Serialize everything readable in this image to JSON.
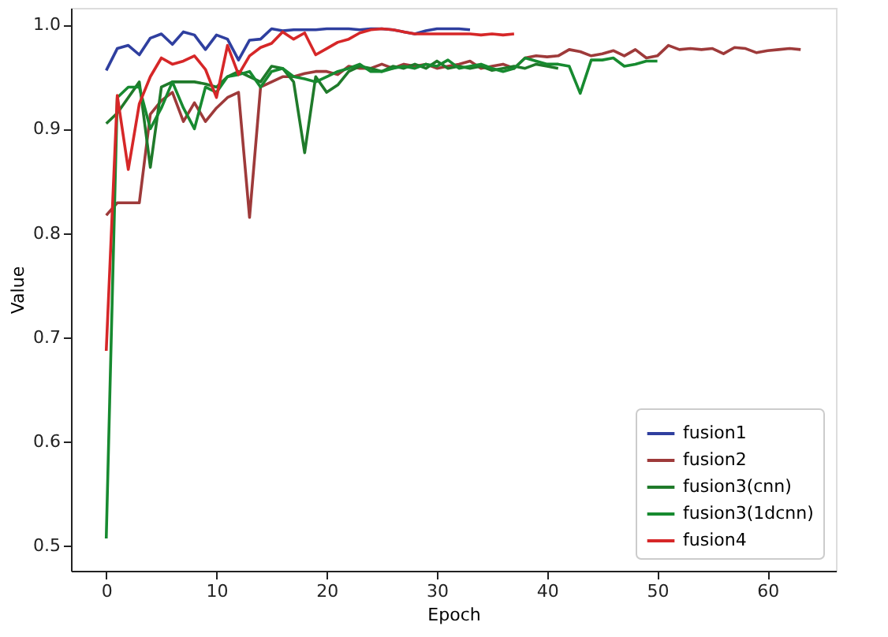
{
  "chart_data": {
    "type": "line",
    "xlabel": "Epoch",
    "ylabel": "Value",
    "xlim": [
      -3.2,
      66.2
    ],
    "ylim": [
      0.476,
      1.016
    ],
    "xticks": [
      0,
      10,
      20,
      30,
      40,
      50,
      60
    ],
    "yticks": [
      0.5,
      0.6,
      0.7,
      0.8,
      0.9,
      {
        "value": 1,
        "label": "1.0"
      }
    ],
    "grid": false,
    "legend": "bottom right",
    "marker": "none",
    "line_style": "solid",
    "series": [
      {
        "name": "fusion1",
        "color": "#2f3f9f",
        "x": [
          0,
          1,
          2,
          3,
          4,
          5,
          6,
          7,
          8,
          9,
          10,
          11,
          12,
          13,
          14,
          15,
          16,
          17,
          18,
          19,
          20,
          21,
          22,
          23,
          24,
          25,
          26,
          27,
          28,
          29,
          30,
          31,
          32,
          33
        ],
        "values": [
          0.956,
          0.977,
          0.98,
          0.971,
          0.987,
          0.991,
          0.981,
          0.993,
          0.99,
          0.976,
          0.99,
          0.986,
          0.966,
          0.985,
          0.986,
          0.996,
          0.994,
          0.995,
          0.995,
          0.995,
          0.996,
          0.996,
          0.996,
          0.995,
          0.996,
          0.996,
          0.995,
          0.993,
          0.991,
          0.994,
          0.996,
          0.996,
          0.996,
          0.995
        ]
      },
      {
        "name": "fusion2",
        "color": "#9e3a3a",
        "x": [
          0,
          1,
          2,
          3,
          4,
          5,
          6,
          7,
          8,
          9,
          10,
          11,
          12,
          13,
          14,
          15,
          16,
          17,
          18,
          19,
          20,
          21,
          22,
          23,
          24,
          25,
          26,
          27,
          28,
          29,
          30,
          31,
          32,
          33,
          34,
          35,
          36,
          37,
          38,
          39,
          40,
          41,
          42,
          43,
          44,
          45,
          46,
          47,
          48,
          49,
          50,
          51,
          52,
          53,
          54,
          55,
          56,
          57,
          58,
          59,
          60,
          61,
          62,
          63
        ],
        "values": [
          0.817,
          0.829,
          0.829,
          0.829,
          0.914,
          0.927,
          0.935,
          0.907,
          0.925,
          0.907,
          0.92,
          0.93,
          0.935,
          0.815,
          0.94,
          0.945,
          0.95,
          0.95,
          0.953,
          0.955,
          0.955,
          0.952,
          0.96,
          0.958,
          0.958,
          0.962,
          0.958,
          0.962,
          0.96,
          0.962,
          0.958,
          0.96,
          0.962,
          0.965,
          0.958,
          0.96,
          0.962,
          0.958,
          0.968,
          0.97,
          0.969,
          0.97,
          0.976,
          0.974,
          0.97,
          0.972,
          0.975,
          0.97,
          0.976,
          0.968,
          0.97,
          0.98,
          0.976,
          0.977,
          0.976,
          0.977,
          0.972,
          0.978,
          0.977,
          0.973,
          0.975,
          0.976,
          0.977,
          0.976
        ]
      },
      {
        "name": "fusion3(cnn)",
        "color": "#1f7a2a",
        "x": [
          0,
          1,
          2,
          3,
          4,
          5,
          6,
          7,
          8,
          9,
          10,
          11,
          12,
          13,
          14,
          15,
          16,
          17,
          18,
          19,
          20,
          21,
          22,
          23,
          24,
          25,
          26,
          27,
          28,
          29,
          30,
          31,
          32,
          33,
          34,
          35,
          36,
          37,
          38,
          39,
          40,
          41
        ],
        "values": [
          0.905,
          0.915,
          0.93,
          0.945,
          0.863,
          0.94,
          0.945,
          0.945,
          0.945,
          0.943,
          0.94,
          0.95,
          0.955,
          0.95,
          0.945,
          0.96,
          0.958,
          0.945,
          0.877,
          0.95,
          0.935,
          0.942,
          0.955,
          0.96,
          0.958,
          0.955,
          0.96,
          0.958,
          0.962,
          0.958,
          0.965,
          0.958,
          0.96,
          0.958,
          0.96,
          0.956,
          0.958,
          0.96,
          0.958,
          0.962,
          0.96,
          0.958
        ]
      },
      {
        "name": "fusion3(1dcnn)",
        "color": "#178a30",
        "x": [
          0,
          1,
          2,
          3,
          4,
          5,
          6,
          7,
          8,
          9,
          10,
          11,
          12,
          13,
          14,
          15,
          16,
          17,
          18,
          19,
          20,
          21,
          22,
          23,
          24,
          25,
          26,
          27,
          28,
          29,
          30,
          31,
          32,
          33,
          34,
          35,
          36,
          37,
          38,
          39,
          40,
          41,
          42,
          43,
          44,
          45,
          46,
          47,
          48,
          49,
          50
        ],
        "values": [
          0.507,
          0.93,
          0.94,
          0.94,
          0.9,
          0.92,
          0.945,
          0.92,
          0.9,
          0.94,
          0.935,
          0.95,
          0.952,
          0.955,
          0.94,
          0.955,
          0.958,
          0.95,
          0.948,
          0.945,
          0.95,
          0.955,
          0.958,
          0.962,
          0.955,
          0.955,
          0.958,
          0.96,
          0.958,
          0.962,
          0.96,
          0.966,
          0.958,
          0.96,
          0.962,
          0.958,
          0.955,
          0.958,
          0.968,
          0.965,
          0.962,
          0.962,
          0.96,
          0.934,
          0.966,
          0.966,
          0.968,
          0.96,
          0.962,
          0.965,
          0.965
        ]
      },
      {
        "name": "fusion4",
        "color": "#d62728",
        "x": [
          0,
          1,
          2,
          3,
          4,
          5,
          6,
          7,
          8,
          9,
          10,
          11,
          12,
          13,
          14,
          15,
          16,
          17,
          18,
          19,
          20,
          21,
          22,
          23,
          24,
          25,
          26,
          27,
          28,
          29,
          30,
          31,
          32,
          33,
          34,
          35,
          36,
          37
        ],
        "values": [
          0.687,
          0.932,
          0.861,
          0.924,
          0.95,
          0.968,
          0.962,
          0.965,
          0.97,
          0.957,
          0.93,
          0.98,
          0.952,
          0.97,
          0.978,
          0.982,
          0.993,
          0.986,
          0.992,
          0.971,
          0.977,
          0.983,
          0.986,
          0.992,
          0.995,
          0.996,
          0.995,
          0.993,
          0.991,
          0.991,
          0.991,
          0.991,
          0.991,
          0.991,
          0.99,
          0.991,
          0.99,
          0.991
        ]
      }
    ]
  }
}
